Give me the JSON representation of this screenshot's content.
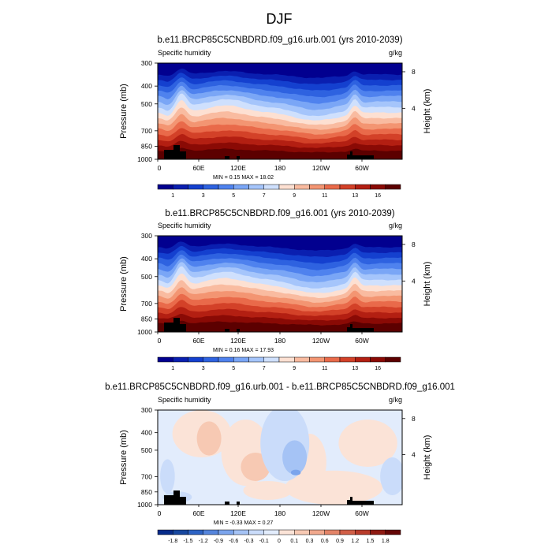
{
  "figure": {
    "title": "DJF"
  },
  "colors": {
    "abs_scale": [
      "#02008f",
      "#0a1fb0",
      "#1440cf",
      "#2e62e0",
      "#4f82ee",
      "#7aa6f6",
      "#a5c5fb",
      "#cfe0fd",
      "#fde0d2",
      "#f9bba0",
      "#f39572",
      "#e96a4a",
      "#d34128",
      "#b31f12",
      "#8a0a05",
      "#5c0000"
    ],
    "diff_scale": [
      "#062b8a",
      "#17479f",
      "#2d63c4",
      "#5585dc",
      "#7ba4ec",
      "#a5c3f5",
      "#cadcfa",
      "#e2ecfc",
      "#fbe3d7",
      "#f7c9b3",
      "#f0a88d",
      "#e38468",
      "#d15f47",
      "#b83b2a",
      "#8f1a12",
      "#650606"
    ],
    "terrain": "#000000"
  },
  "panels": [
    {
      "title": "b.e11.BRCP85C5CNBDRD.f09_g16.urb.001 (yrs 2010-2039)",
      "left_label": "Specific humidity",
      "right_label": "g/kg",
      "stats": "MIN =   0.15  MAX =   18.02",
      "min": 0.15,
      "max": 18.02,
      "kind": "abs"
    },
    {
      "title": "b.e11.BRCP85C5CNBDRD.f09_g16.001 (yrs 2010-2039)",
      "left_label": "Specific humidity",
      "right_label": "g/kg",
      "stats": "MIN =   0.16  MAX =   17.93",
      "min": 0.16,
      "max": 17.93,
      "kind": "abs"
    },
    {
      "title": "b.e11.BRCP85C5CNBDRD.f09_g16.urb.001 - b.e11.BRCP85C5CNBDRD.f09_g16.001",
      "left_label": "Specific humidity",
      "right_label": "g/kg",
      "stats": "MIN =  -0.33  MAX =   0.27",
      "min": -0.33,
      "max": 0.27,
      "kind": "diff"
    }
  ],
  "chart_data": {
    "type": "heatmap",
    "x_ticks": [
      "0",
      "60E",
      "120E",
      "180",
      "120W",
      "60W"
    ],
    "y_ticks": [
      "300",
      "400",
      "500",
      "700",
      "850",
      "1000"
    ],
    "y_tick_values": [
      300,
      400,
      500,
      700,
      850,
      1000
    ],
    "ylim": [
      1000,
      300
    ],
    "ylabel": "Pressure (mb)",
    "y2label": "Height (km)",
    "y2_ticks": [
      "8",
      "4"
    ],
    "colorbar_abs_labels": [
      "1",
      "3",
      "5",
      "7",
      "9",
      "11",
      "13",
      "16"
    ],
    "colorbar_diff_labels": [
      "-1.8",
      "-1.5",
      "-1.2",
      "-0.9",
      "-0.6",
      "-0.3",
      "-0.1",
      "0",
      "0.1",
      "0.3",
      "0.6",
      "0.9",
      "1.2",
      "1.5",
      "1.8"
    ]
  }
}
